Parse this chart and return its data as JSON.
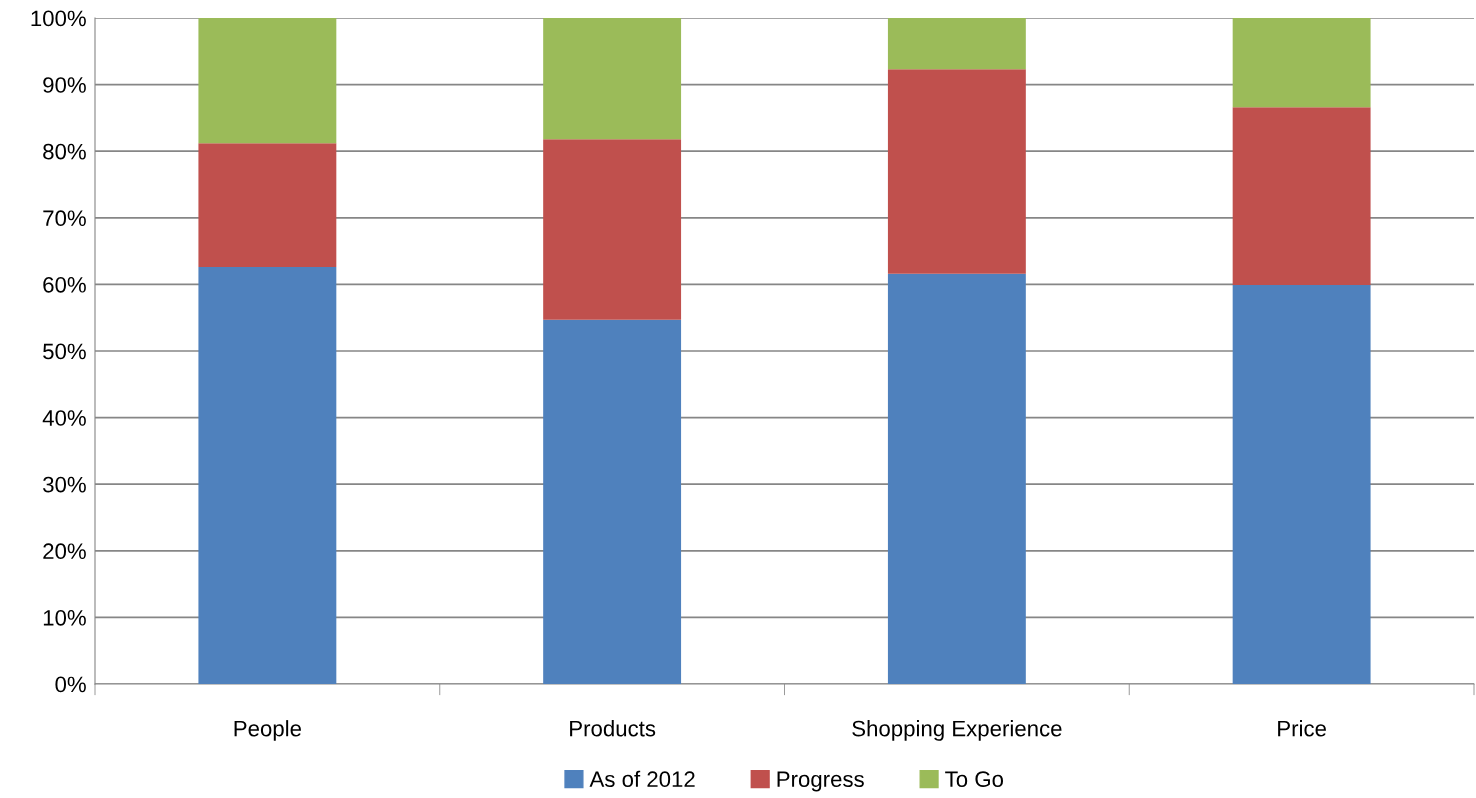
{
  "chart_data": {
    "type": "bar",
    "stacked": true,
    "categories": [
      "People",
      "Products",
      "Shopping Experience",
      "Price"
    ],
    "series": [
      {
        "name": "As of 2012",
        "color": "#4f81bd",
        "values": [
          62.6,
          54.7,
          61.6,
          59.9
        ]
      },
      {
        "name": "Progress",
        "color": "#c0504d",
        "values": [
          18.6,
          27.1,
          30.7,
          26.7
        ]
      },
      {
        "name": "To Go",
        "color": "#9bbb59",
        "values": [
          18.8,
          18.2,
          7.7,
          13.4
        ]
      }
    ],
    "ylim": [
      0,
      100
    ],
    "yticks": [
      {
        "value": 0,
        "label": "0%"
      },
      {
        "value": 10,
        "label": "10%"
      },
      {
        "value": 20,
        "label": "20%"
      },
      {
        "value": 30,
        "label": "30%"
      },
      {
        "value": 40,
        "label": "40%"
      },
      {
        "value": 50,
        "label": "50%"
      },
      {
        "value": 60,
        "label": "60%"
      },
      {
        "value": 70,
        "label": "70%"
      },
      {
        "value": 80,
        "label": "80%"
      },
      {
        "value": 90,
        "label": "90%"
      },
      {
        "value": 100,
        "label": "100%"
      }
    ],
    "grid": "y",
    "legend": "bottom"
  }
}
